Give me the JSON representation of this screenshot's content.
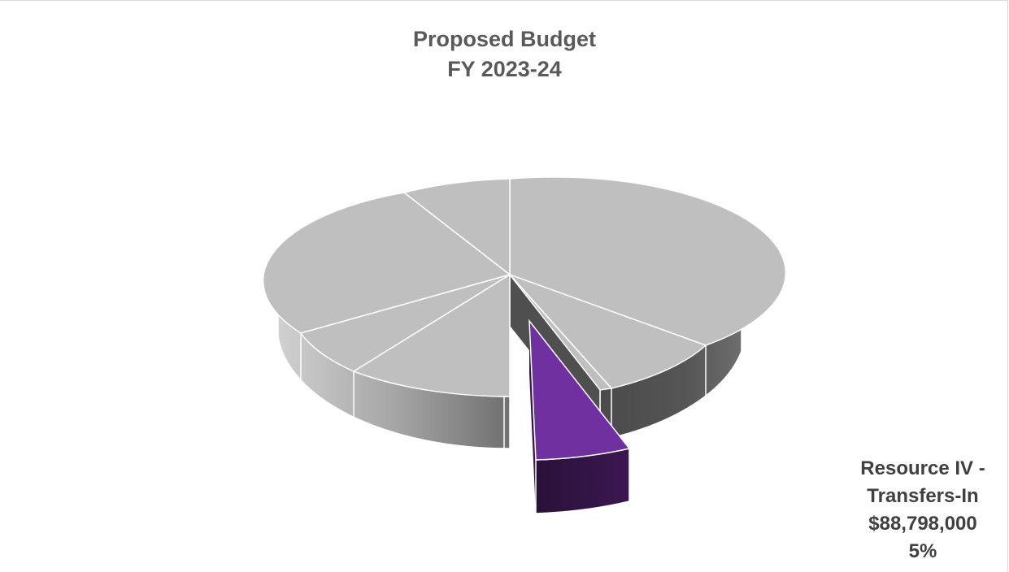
{
  "chart_data": {
    "type": "pie",
    "style": "3d-exploded",
    "title": [
      "Proposed Budget",
      "FY 2023-24"
    ],
    "highlighted_slice": {
      "label": "Resource IV - Transfers-In",
      "label_lines": [
        "Resource IV -",
        "Transfers-In",
        "$88,798,000",
        "5%"
      ],
      "value": 88798000,
      "percent": 5,
      "color": "#7030a0"
    },
    "other_slices": {
      "count": 7,
      "color": "#bfbfbf",
      "values_shown": false
    }
  }
}
